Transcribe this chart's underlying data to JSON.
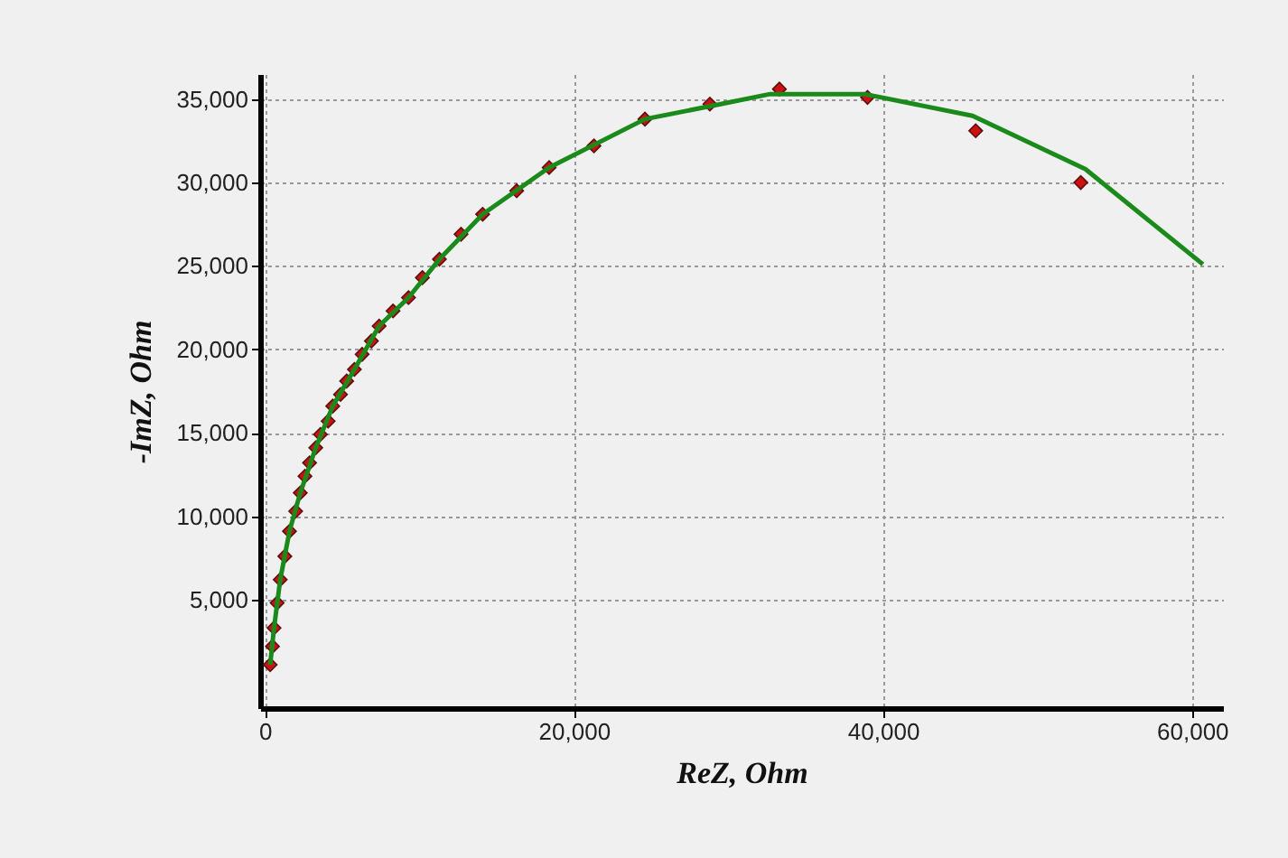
{
  "chart_data": {
    "type": "scatter",
    "xlabel": "ReZ, Ohm",
    "ylabel": "-ImZ, Ohm",
    "xlim": [
      -300,
      62000
    ],
    "ylim": [
      -1500,
      36500
    ],
    "xticks": [
      0,
      {
        "value": 20000,
        "label": "20,000"
      },
      {
        "value": 40000,
        "label": "40,000"
      },
      {
        "value": 60000,
        "label": "60,000"
      }
    ],
    "yticks": [
      {
        "value": 5000,
        "label": "5,000"
      },
      {
        "value": 10000,
        "label": "10,000"
      },
      {
        "value": 15000,
        "label": "15,000"
      },
      {
        "value": 20000,
        "label": "20,000"
      },
      {
        "value": 25000,
        "label": "25,000"
      },
      {
        "value": 30000,
        "label": "30,000"
      },
      {
        "value": 35000,
        "label": "35,000"
      }
    ],
    "grid": true,
    "legend": false,
    "series": [
      {
        "type": "scatter",
        "marker": "diamond",
        "color": "#d01010",
        "x": [
          350,
          500,
          600,
          800,
          1000,
          1300,
          1600,
          2000,
          2300,
          2600,
          2900,
          3300,
          3600,
          4100,
          4400,
          4900,
          5300,
          5800,
          6300,
          6900,
          7400,
          8300,
          9300,
          10200,
          11300,
          12700,
          14100,
          16300,
          18400,
          21300,
          24600,
          28800,
          33300,
          39000,
          46000,
          52800
        ],
        "values": [
          1100,
          2200,
          3300,
          4800,
          6200,
          7600,
          9100,
          10300,
          11400,
          12400,
          13200,
          14100,
          14900,
          15700,
          16600,
          17300,
          18100,
          18800,
          19700,
          20500,
          21400,
          22300,
          23100,
          24300,
          25400,
          26900,
          28100,
          29500,
          30900,
          32200,
          33800,
          34700,
          35600,
          35100,
          33100,
          30000
        ]
      },
      {
        "type": "line",
        "line_style": "solid",
        "color": "#1a8a1a",
        "x": [
          350,
          600,
          1000,
          1600,
          2300,
          3300,
          4400,
          5800,
          7400,
          9300,
          11300,
          14100,
          18400,
          24600,
          29500,
          32700,
          38800,
          45800,
          53100,
          60700
        ],
        "values": [
          1100,
          3300,
          6200,
          9100,
          11400,
          14100,
          16600,
          18800,
          21400,
          23100,
          25400,
          28100,
          30900,
          33800,
          34700,
          35300,
          35300,
          34000,
          30800,
          25100
        ]
      }
    ]
  }
}
